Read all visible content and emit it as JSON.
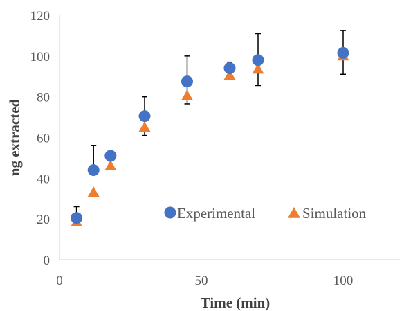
{
  "chart_data": {
    "type": "scatter",
    "xlabel": "Time (min)",
    "ylabel": "ng extracted",
    "xlim": [
      0,
      120
    ],
    "ylim": [
      0,
      120
    ],
    "x_ticks": [
      0,
      50,
      100
    ],
    "y_ticks": [
      0,
      20,
      40,
      60,
      80,
      100,
      120
    ],
    "grid": false,
    "legend_position": "bottom-right",
    "series": [
      {
        "name": "Experimental",
        "marker": "circle",
        "color": "#4472C4",
        "x": [
          6,
          12,
          18,
          30,
          45,
          60,
          70,
          100
        ],
        "y": [
          20.5,
          44,
          51,
          70.5,
          87.5,
          94,
          98,
          101.5
        ],
        "error_plus": [
          5.5,
          12,
          2,
          9.5,
          12.5,
          3,
          13,
          11
        ],
        "error_minus": [
          2.5,
          0,
          0,
          9.5,
          11,
          0,
          12.5,
          10.5
        ]
      },
      {
        "name": "Simulation",
        "marker": "triangle",
        "color": "#ED7D31",
        "x": [
          6,
          12,
          18,
          30,
          45,
          60,
          70,
          100
        ],
        "y": [
          18.5,
          33,
          46,
          65,
          80.5,
          90.5,
          93.5,
          100
        ]
      }
    ]
  }
}
